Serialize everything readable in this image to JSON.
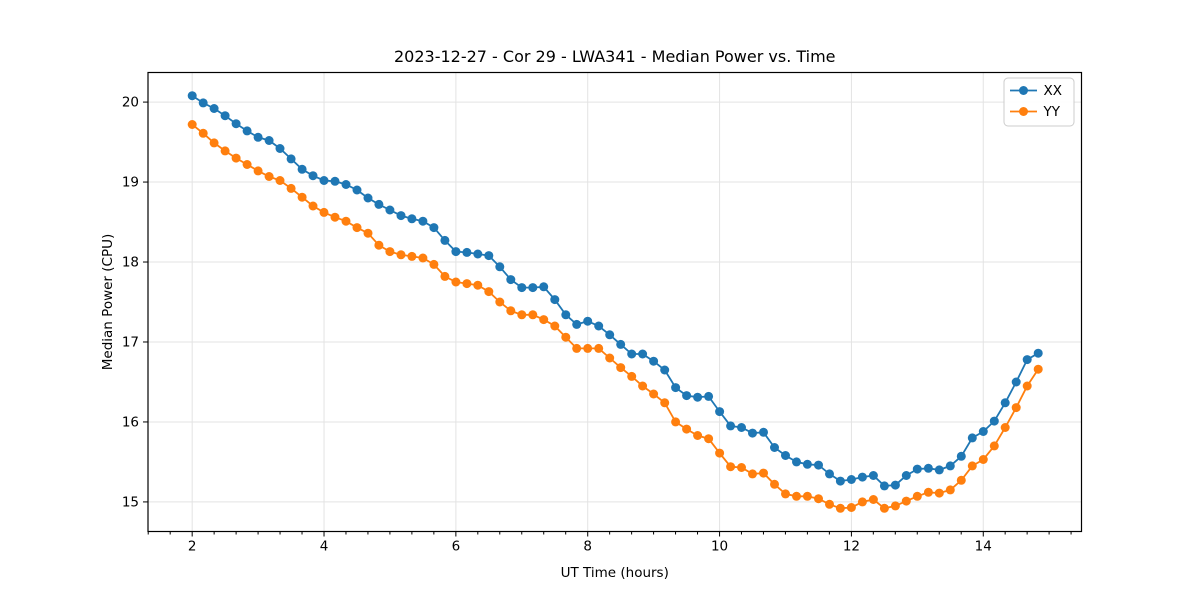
{
  "page": {
    "background": "#ffffff"
  },
  "chart_data": {
    "type": "line",
    "title": "2023-12-27 - Cor 29 - LWA341 - Median Power vs. Time",
    "xlabel": "UT Time (hours)",
    "ylabel": "Median Power (CPU)",
    "xlim": [
      1.33,
      15.49
    ],
    "ylim": [
      14.63,
      20.37
    ],
    "xticks": [
      2,
      4,
      6,
      8,
      10,
      12,
      14
    ],
    "yticks": [
      15,
      16,
      17,
      18,
      19,
      20
    ],
    "x_minor_tick_step": 0.3333,
    "grid": true,
    "legend": {
      "position": "upper right",
      "entries": [
        {
          "label": "XX",
          "color": "#1f77b4"
        },
        {
          "label": "YY",
          "color": "#ff7f0e"
        }
      ]
    },
    "x": [
      2.0,
      2.167,
      2.333,
      2.5,
      2.667,
      2.833,
      3.0,
      3.167,
      3.333,
      3.5,
      3.667,
      3.833,
      4.0,
      4.167,
      4.333,
      4.5,
      4.667,
      4.833,
      5.0,
      5.167,
      5.333,
      5.5,
      5.667,
      5.833,
      6.0,
      6.167,
      6.333,
      6.5,
      6.667,
      6.833,
      7.0,
      7.167,
      7.333,
      7.5,
      7.667,
      7.833,
      8.0,
      8.167,
      8.333,
      8.5,
      8.667,
      8.833,
      9.0,
      9.167,
      9.333,
      9.5,
      9.667,
      9.833,
      10.0,
      10.167,
      10.333,
      10.5,
      10.667,
      10.833,
      11.0,
      11.167,
      11.333,
      11.5,
      11.667,
      11.833,
      12.0,
      12.167,
      12.333,
      12.5,
      12.667,
      12.833,
      13.0,
      13.167,
      13.333,
      13.5,
      13.667,
      13.833,
      14.0,
      14.167,
      14.333,
      14.5,
      14.667,
      14.833
    ],
    "series": [
      {
        "name": "XX",
        "color": "#1f77b4",
        "marker": "circle",
        "values": [
          20.08,
          19.99,
          19.92,
          19.83,
          19.73,
          19.64,
          19.56,
          19.52,
          19.42,
          19.29,
          19.16,
          19.08,
          19.02,
          19.01,
          18.97,
          18.9,
          18.8,
          18.72,
          18.65,
          18.58,
          18.54,
          18.51,
          18.43,
          18.27,
          18.13,
          18.12,
          18.1,
          18.08,
          17.94,
          17.78,
          17.68,
          17.68,
          17.69,
          17.53,
          17.34,
          17.22,
          17.26,
          17.2,
          17.09,
          16.97,
          16.85,
          16.85,
          16.76,
          16.65,
          16.43,
          16.33,
          16.31,
          16.32,
          16.13,
          15.95,
          15.93,
          15.86,
          15.87,
          15.68,
          15.58,
          15.5,
          15.47,
          15.46,
          15.35,
          15.26,
          15.28,
          15.31,
          15.33,
          15.2,
          15.21,
          15.33,
          15.41,
          15.42,
          15.4,
          15.45,
          15.57,
          15.8,
          15.88,
          16.01,
          16.24,
          16.5,
          16.78,
          16.86
        ]
      },
      {
        "name": "YY",
        "color": "#ff7f0e",
        "marker": "circle",
        "values": [
          19.72,
          19.61,
          19.49,
          19.39,
          19.3,
          19.22,
          19.14,
          19.07,
          19.02,
          18.92,
          18.81,
          18.7,
          18.62,
          18.56,
          18.51,
          18.43,
          18.36,
          18.21,
          18.13,
          18.09,
          18.07,
          18.05,
          17.97,
          17.82,
          17.75,
          17.73,
          17.71,
          17.63,
          17.5,
          17.39,
          17.34,
          17.34,
          17.28,
          17.2,
          17.06,
          16.92,
          16.92,
          16.92,
          16.8,
          16.68,
          16.57,
          16.45,
          16.35,
          16.24,
          16.0,
          15.91,
          15.83,
          15.79,
          15.61,
          15.44,
          15.43,
          15.35,
          15.36,
          15.22,
          15.1,
          15.07,
          15.07,
          15.04,
          14.97,
          14.92,
          14.93,
          15.0,
          15.03,
          14.92,
          14.95,
          15.01,
          15.07,
          15.12,
          15.11,
          15.15,
          15.27,
          15.45,
          15.53,
          15.7,
          15.93,
          16.18,
          16.45,
          16.66
        ]
      }
    ],
    "style": {
      "grid_color": "#e3e3e3",
      "spine_color": "#000000",
      "marker_radius": 4.5,
      "line_width": 1.8,
      "legend_border": "#cccccc"
    }
  }
}
